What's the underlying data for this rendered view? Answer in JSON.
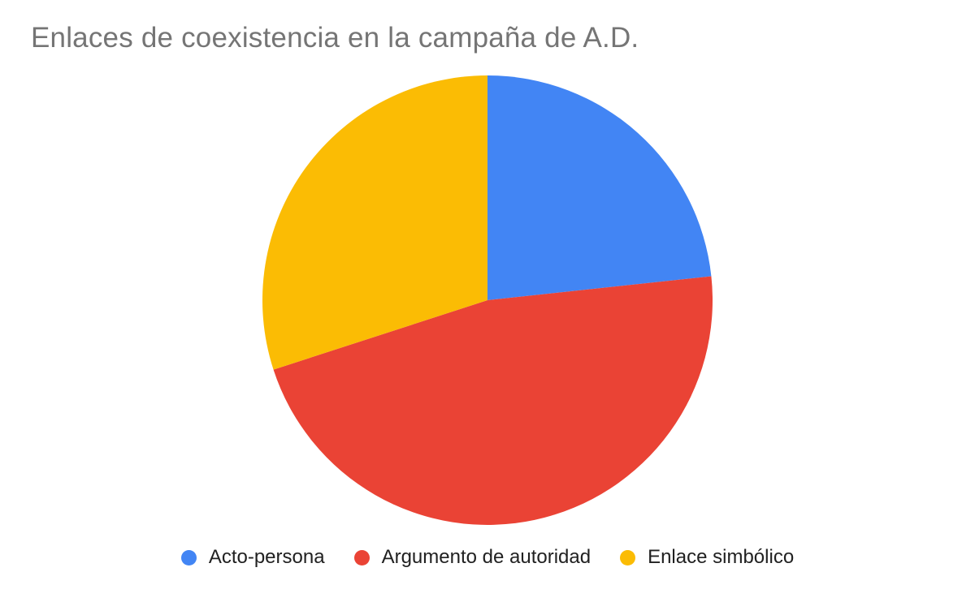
{
  "chart_data": {
    "type": "pie",
    "title": "Enlaces de coexistencia en la campaña de A.D.",
    "labels": [
      "Acto-persona",
      "Argumento de autoridad",
      "Enlace simbólico"
    ],
    "values_percent": [
      23.3,
      46.7,
      30.0
    ],
    "colors": [
      "#4285F4",
      "#EA4335",
      "#FBBC04"
    ],
    "start_angle_deg": 0,
    "direction": "clockwise",
    "legend_position": "bottom",
    "data_labels_shown": false,
    "title_color": "#757575",
    "legend_text_color": "#212121",
    "background_color": "#FFFFFF"
  }
}
